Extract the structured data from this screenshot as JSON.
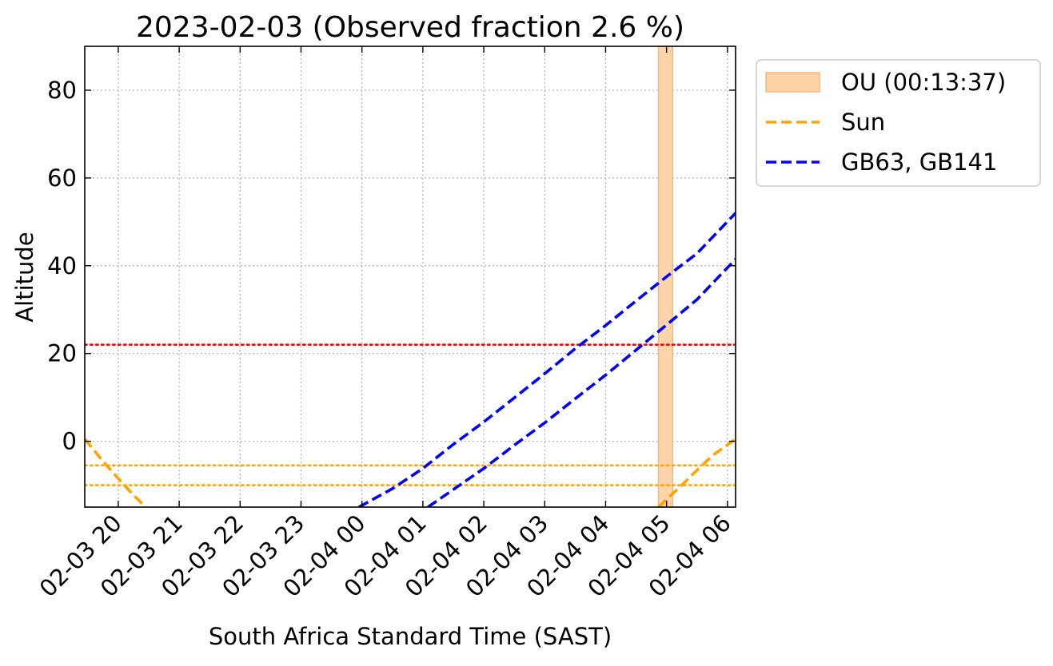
{
  "chart_data": {
    "type": "line",
    "title": "2023-02-03 (Observed fraction 2.6 %)",
    "xlabel": "South Africa Standard Time (SAST)",
    "ylabel": "Altitude",
    "x_range": [
      "2023-02-03 19:27",
      "2023-02-04 06:08"
    ],
    "ylim": [
      -15,
      90
    ],
    "y_ticks": [
      0,
      20,
      40,
      60,
      80
    ],
    "x_ticks": [
      {
        "t": "2023-02-03 20:00",
        "label": "02-03 20"
      },
      {
        "t": "2023-02-03 21:00",
        "label": "02-03 21"
      },
      {
        "t": "2023-02-03 22:00",
        "label": "02-03 22"
      },
      {
        "t": "2023-02-03 23:00",
        "label": "02-03 23"
      },
      {
        "t": "2023-02-04 00:00",
        "label": "02-04 00"
      },
      {
        "t": "2023-02-04 01:00",
        "label": "02-04 01"
      },
      {
        "t": "2023-02-04 02:00",
        "label": "02-04 02"
      },
      {
        "t": "2023-02-04 03:00",
        "label": "02-04 03"
      },
      {
        "t": "2023-02-04 04:00",
        "label": "02-04 04"
      },
      {
        "t": "2023-02-04 05:00",
        "label": "02-04 05"
      },
      {
        "t": "2023-02-04 06:00",
        "label": "02-04 06"
      }
    ],
    "grid": true,
    "legend_position": "outside top-right",
    "observation_window": {
      "label": "OU (00:13:37)",
      "start": "2023-02-04 04:52",
      "end": "2023-02-04 05:06",
      "color": "#ffd2a6"
    },
    "series": [
      {
        "name": "Sun",
        "color": "#ffa500",
        "style": "dashed",
        "segments": [
          [
            [
              "2023-02-03 19:27",
              0.5
            ],
            [
              "2023-02-03 19:45",
              -4.6
            ],
            [
              "2023-02-03 20:00",
              -8.5
            ],
            [
              "2023-02-03 20:15",
              -12.3
            ],
            [
              "2023-02-03 20:27",
              -15
            ]
          ],
          [
            [
              "2023-02-04 04:52",
              -15
            ],
            [
              "2023-02-04 05:15",
              -10.0
            ],
            [
              "2023-02-04 05:30",
              -6.6
            ],
            [
              "2023-02-04 05:45",
              -3.3
            ],
            [
              "2023-02-04 06:08",
              0.5
            ]
          ]
        ]
      },
      {
        "name": "GB63, GB141",
        "color": "#0000ff",
        "style": "dashed",
        "segments": [
          [
            [
              "2023-02-03 23:57",
              -15
            ],
            [
              "2023-02-04 00:30",
              -10.8
            ],
            [
              "2023-02-04 01:00",
              -6.2
            ],
            [
              "2023-02-04 01:30",
              -0.7
            ],
            [
              "2023-02-04 02:00",
              4.4
            ],
            [
              "2023-02-04 02:30",
              9.9
            ],
            [
              "2023-02-04 03:00",
              15.4
            ],
            [
              "2023-02-04 03:30",
              21.1
            ],
            [
              "2023-02-04 04:00",
              26.4
            ],
            [
              "2023-02-04 04:30",
              32.0
            ],
            [
              "2023-02-04 05:00",
              37.5
            ],
            [
              "2023-02-04 05:30",
              42.8
            ],
            [
              "2023-02-04 06:08",
              52.0
            ]
          ],
          [
            [
              "2023-02-04 01:05",
              -15
            ],
            [
              "2023-02-04 01:30",
              -11.0
            ],
            [
              "2023-02-04 02:00",
              -6.2
            ],
            [
              "2023-02-04 02:30",
              -0.9
            ],
            [
              "2023-02-04 03:00",
              4.2
            ],
            [
              "2023-02-04 03:30",
              9.7
            ],
            [
              "2023-02-04 04:00",
              15.1
            ],
            [
              "2023-02-04 04:30",
              20.8
            ],
            [
              "2023-02-04 05:00",
              26.5
            ],
            [
              "2023-02-04 05:30",
              32.3
            ],
            [
              "2023-02-04 06:08",
              41.5
            ]
          ]
        ]
      }
    ],
    "reference_lines": [
      {
        "y": 22,
        "color": "#ff0000",
        "style": "dotted"
      },
      {
        "y": -5.5,
        "color": "#ffa500",
        "style": "dotted"
      },
      {
        "y": -10,
        "color": "#ffa500",
        "style": "dotted"
      }
    ],
    "legend": [
      {
        "label": "OU (00:13:37)",
        "kind": "patch",
        "color": "#ffd2a6",
        "edge": "#f5b77a"
      },
      {
        "label": "Sun",
        "kind": "dashed-line",
        "color": "#ffa500"
      },
      {
        "label": "GB63, GB141",
        "kind": "dashed-line",
        "color": "#0000ff"
      }
    ]
  }
}
